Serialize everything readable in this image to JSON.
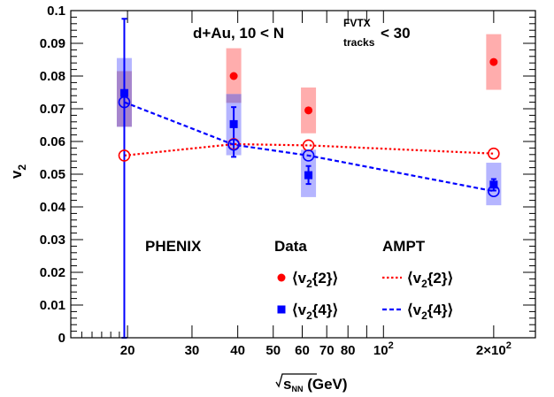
{
  "chart_data": {
    "type": "scatter",
    "title_main": "d+Au, 10 < N",
    "title_sup": "FVTX",
    "title_sub": "tracks",
    "title_tail": " < 30",
    "ylabel_main": "v",
    "ylabel_sub": "2",
    "xlabel_root": "s",
    "xlabel_root_sub": "NN",
    "xlabel_tail": " (GeV)",
    "xscale": "log",
    "xlim": [
      14,
      260
    ],
    "ylim": [
      0,
      0.1
    ],
    "ytick_labels": [
      "0",
      "0.01",
      "0.02",
      "0.03",
      "0.04",
      "0.05",
      "0.06",
      "0.07",
      "0.08",
      "0.09",
      "0.1"
    ],
    "xtick_labels": [
      {
        "x": 20,
        "label": "20"
      },
      {
        "x": 30,
        "label": "30"
      },
      {
        "x": 40,
        "label": "40"
      },
      {
        "x": 50,
        "label": "50"
      },
      {
        "x": 60,
        "label": "60"
      },
      {
        "x": 70,
        "label": "70"
      },
      {
        "x": 80,
        "label": "80"
      },
      {
        "x": 100,
        "label": "10",
        "sup": "2"
      },
      {
        "x": 200,
        "label": "2×10",
        "sup": "2"
      }
    ],
    "series": [
      {
        "name": "⟨v{2}⟩",
        "kind": "data",
        "color": "#ff0000",
        "marker": "filled-circle",
        "points": [
          {
            "x": 39,
            "y": 0.08,
            "sys_low": 0.0745,
            "sys_high": 0.0885
          },
          {
            "x": 62.4,
            "y": 0.0695,
            "sys_low": 0.0625,
            "sys_high": 0.0765
          },
          {
            "x": 200,
            "y": 0.0843,
            "sys_low": 0.0758,
            "sys_high": 0.0928
          }
        ]
      },
      {
        "name": "⟨v{4}⟩",
        "kind": "data",
        "color": "#0000ff",
        "marker": "filled-square",
        "points": [
          {
            "x": 19.6,
            "y": 0.0748,
            "stat_low": 0.0,
            "stat_high": 0.0975,
            "sys_low": 0.0645,
            "sys_high": 0.0855
          },
          {
            "x": 39,
            "y": 0.0653,
            "stat_low": 0.0553,
            "stat_high": 0.0705,
            "sys_low": 0.0558,
            "sys_high": 0.0745
          },
          {
            "x": 62.4,
            "y": 0.0497,
            "stat_low": 0.047,
            "stat_high": 0.0525,
            "sys_low": 0.043,
            "sys_high": 0.0575
          },
          {
            "x": 200,
            "y": 0.0468,
            "stat_low": 0.045,
            "stat_high": 0.0485,
            "sys_low": 0.0405,
            "sys_high": 0.0535
          }
        ]
      },
      {
        "name": "⟨v{2}⟩",
        "kind": "ampt",
        "color": "#ff0000",
        "marker": "open-circle",
        "line": "dotted",
        "points": [
          {
            "x": 19.6,
            "y": 0.0557
          },
          {
            "x": 39,
            "y": 0.0592
          },
          {
            "x": 62.4,
            "y": 0.0588
          },
          {
            "x": 200,
            "y": 0.0563
          }
        ]
      },
      {
        "name": "⟨v{4}⟩",
        "kind": "ampt",
        "color": "#0000ff",
        "marker": "open-circle",
        "line": "dashed",
        "points": [
          {
            "x": 19.6,
            "y": 0.072
          },
          {
            "x": 39,
            "y": 0.059
          },
          {
            "x": 62.4,
            "y": 0.0557
          },
          {
            "x": 200,
            "y": 0.0448
          }
        ]
      }
    ],
    "extra_band": {
      "x": 19.6,
      "low": 0.0645,
      "high": 0.0815,
      "color": "#a070b8"
    },
    "extra_band2": {
      "x": 39,
      "low": 0.0718,
      "high": 0.0745,
      "color": "#a070b8"
    },
    "legend": {
      "experiment": "PHENIX",
      "data_header": "Data",
      "model_header": "AMPT",
      "entry_v2_main": "v",
      "entry_v2_sub": "2",
      "entry_v2_tail": "{2}",
      "entry_v4_main": "v",
      "entry_v4_sub": "2",
      "entry_v4_tail": "{4}",
      "placement": "bottom-center"
    }
  }
}
